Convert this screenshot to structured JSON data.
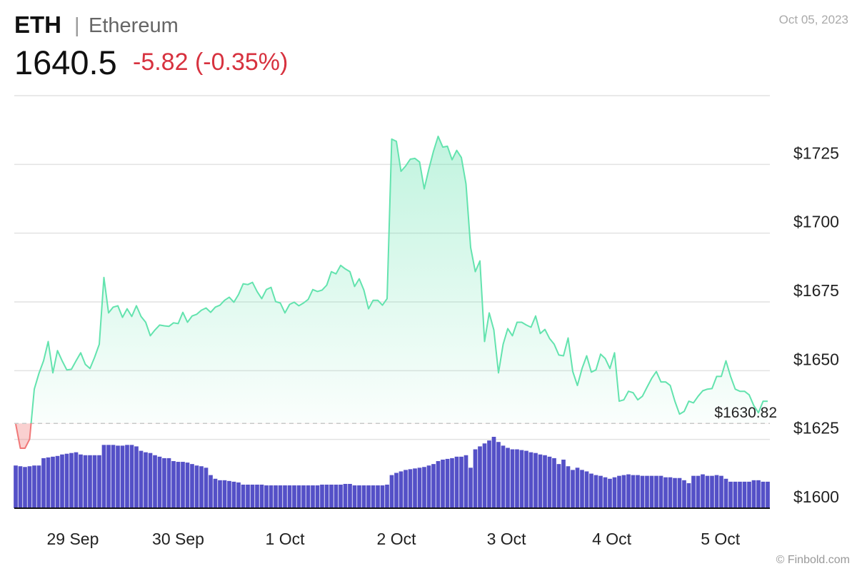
{
  "header": {
    "symbol": "ETH",
    "separator": "|",
    "name": "Ethereum",
    "price": "1640.5",
    "change": "-5.82 (-0.35%)",
    "date": "Oct 05, 2023"
  },
  "footer": "© Finbold.com",
  "chart_data": {
    "type": "line",
    "color": "#63e3ae",
    "negative_color": "#f07878",
    "values": [
      1630.6,
      1621.8,
      1621.8,
      1625.1,
      1643.3,
      1649.0,
      1653.6,
      1660.6,
      1649.2,
      1657.3,
      1653.6,
      1650.3,
      1650.5,
      1653.6,
      1656.5,
      1652.3,
      1650.8,
      1654.9,
      1659.6,
      1683.9,
      1671.0,
      1673.1,
      1673.6,
      1669.4,
      1672.5,
      1669.7,
      1673.6,
      1669.7,
      1667.6,
      1662.7,
      1664.8,
      1666.6,
      1666.3,
      1666.1,
      1667.4,
      1667.1,
      1671.2,
      1667.6,
      1669.9,
      1670.5,
      1672.0,
      1672.8,
      1671.2,
      1673.1,
      1673.8,
      1675.6,
      1676.7,
      1674.9,
      1677.7,
      1681.6,
      1681.3,
      1682.1,
      1678.8,
      1676.2,
      1679.5,
      1680.3,
      1675.1,
      1674.6,
      1671.0,
      1674.1,
      1674.9,
      1673.6,
      1674.6,
      1675.9,
      1679.5,
      1678.8,
      1679.3,
      1681.1,
      1686.0,
      1685.2,
      1688.3,
      1687.0,
      1686.0,
      1680.6,
      1683.4,
      1679.3,
      1672.5,
      1675.6,
      1675.6,
      1673.8,
      1676.2,
      1734.2,
      1733.4,
      1722.5,
      1724.4,
      1726.9,
      1727.2,
      1725.9,
      1716.1,
      1723.3,
      1729.8,
      1735.2,
      1731.3,
      1731.6,
      1726.7,
      1730.1,
      1727.5,
      1717.9,
      1694.8,
      1686.0,
      1689.9,
      1660.6,
      1671.0,
      1664.8,
      1649.2,
      1659.6,
      1665.3,
      1662.7,
      1667.6,
      1667.6,
      1666.6,
      1665.8,
      1669.9,
      1663.5,
      1665.0,
      1661.7,
      1659.6,
      1655.7,
      1655.4,
      1661.9,
      1649.7,
      1644.6,
      1650.8,
      1655.4,
      1649.5,
      1650.3,
      1656.0,
      1654.4,
      1650.8,
      1656.5,
      1638.9,
      1639.4,
      1642.5,
      1642.0,
      1639.4,
      1640.7,
      1644.0,
      1647.2,
      1649.7,
      1645.9,
      1645.9,
      1644.6,
      1638.9,
      1634.2,
      1635.2,
      1638.9,
      1638.3,
      1640.7,
      1642.7,
      1643.3,
      1643.5,
      1647.9,
      1647.9,
      1653.6,
      1647.9,
      1643.3,
      1642.5,
      1642.5,
      1641.2,
      1637.3,
      1634.7,
      1638.9,
      1638.9
    ],
    "reference": {
      "value": 1630.82,
      "label": "$1630.82"
    },
    "volume": {
      "color": "#5450c7",
      "values": [
        58,
        57,
        56,
        57,
        58,
        58,
        68,
        69,
        70,
        71,
        73,
        74,
        75,
        76,
        73,
        72,
        72,
        72,
        72,
        86,
        86,
        86,
        85,
        85,
        86,
        86,
        84,
        78,
        76,
        75,
        72,
        70,
        68,
        68,
        64,
        63,
        63,
        62,
        60,
        58,
        57,
        55,
        45,
        40,
        38,
        38,
        37,
        36,
        35,
        32,
        32,
        32,
        32,
        32,
        31,
        31,
        31,
        31,
        31,
        31,
        31,
        31,
        31,
        31,
        31,
        31,
        32,
        32,
        32,
        32,
        32,
        33,
        33,
        31,
        31,
        31,
        31,
        31,
        31,
        31,
        32,
        45,
        48,
        50,
        52,
        53,
        54,
        55,
        56,
        58,
        60,
        64,
        66,
        67,
        68,
        70,
        70,
        72,
        55,
        80,
        84,
        88,
        92,
        97,
        90,
        85,
        82,
        80,
        80,
        79,
        78,
        76,
        75,
        73,
        72,
        70,
        68,
        60,
        66,
        57,
        52,
        55,
        52,
        50,
        47,
        45,
        44,
        42,
        40,
        42,
        44,
        45,
        46,
        45,
        45,
        44,
        44,
        44,
        44,
        44,
        42,
        42,
        41,
        41,
        38,
        34,
        44,
        44,
        46,
        44,
        44,
        45,
        44,
        40,
        36,
        36,
        36,
        36,
        36,
        38,
        38,
        36,
        36
      ]
    },
    "xlim": [
      0,
      162
    ],
    "xticks": [
      {
        "value": 12.3,
        "label": "29 Sep"
      },
      {
        "value": 35,
        "label": "30 Sep"
      },
      {
        "value": 58,
        "label": "1 Oct"
      },
      {
        "value": 82,
        "label": "2 Oct"
      },
      {
        "value": 105.7,
        "label": "3 Oct"
      },
      {
        "value": 128.4,
        "label": "4 Oct"
      },
      {
        "value": 151.8,
        "label": "5 Oct"
      }
    ],
    "ylim": [
      1600,
      1750
    ],
    "yticks": [
      {
        "value": 1600,
        "label": "$1600"
      },
      {
        "value": 1625,
        "label": "$1625"
      },
      {
        "value": 1650,
        "label": "$1650"
      },
      {
        "value": 1675,
        "label": "$1675"
      },
      {
        "value": 1700,
        "label": "$1700"
      },
      {
        "value": 1725,
        "label": "$1725"
      }
    ],
    "grid": true
  }
}
